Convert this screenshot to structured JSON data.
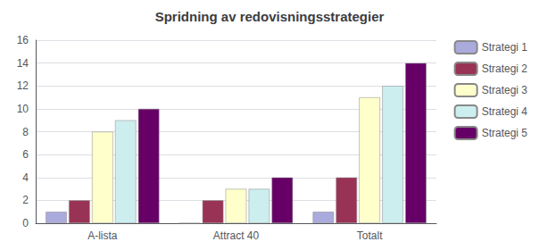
{
  "chart_data": {
    "type": "bar",
    "title": "Spridning av redovisningsstrategier",
    "categories": [
      "A-lista",
      "Attract 40",
      "Totalt"
    ],
    "series": [
      {
        "name": "Strategi 1",
        "color": "#aaaadd",
        "values": [
          1,
          0,
          1
        ]
      },
      {
        "name": "Strategi 2",
        "color": "#993355",
        "values": [
          2,
          2,
          4
        ]
      },
      {
        "name": "Strategi 3",
        "color": "#ffffcc",
        "values": [
          8,
          3,
          11
        ]
      },
      {
        "name": "Strategi 4",
        "color": "#cceeee",
        "values": [
          9,
          3,
          12
        ]
      },
      {
        "name": "Strategi 5",
        "color": "#660066",
        "values": [
          10,
          4,
          14
        ]
      }
    ],
    "ylim": [
      0,
      16
    ],
    "yticks": [
      0,
      2,
      4,
      6,
      8,
      10,
      12,
      14,
      16
    ],
    "grid": true,
    "legend": "right"
  }
}
